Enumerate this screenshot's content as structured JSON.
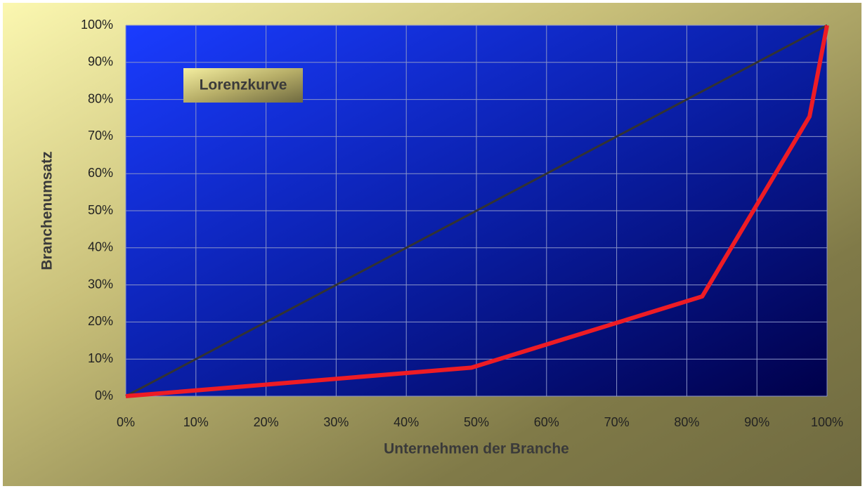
{
  "chart_data": {
    "type": "line",
    "x_label": "Unternehmen der Branche",
    "y_label": "Branchenumsatz",
    "annotation": "Lorenzkurve",
    "series": [
      {
        "color": "#333333",
        "x": [
          0,
          100
        ],
        "values": [
          0,
          100
        ]
      },
      {
        "color": "#ee1c25",
        "x": [
          0,
          49.3,
          82.2,
          97.5,
          100
        ],
        "values": [
          0,
          7.7,
          26.9,
          75.4,
          100
        ]
      }
    ],
    "xlim": [
      0,
      100
    ],
    "xticks": [
      {
        "value": 0,
        "label": "0%"
      },
      {
        "value": 10,
        "label": "10%"
      },
      {
        "value": 20,
        "label": "20%"
      },
      {
        "value": 30,
        "label": "30%"
      },
      {
        "value": 40,
        "label": "40%"
      },
      {
        "value": 50,
        "label": "50%"
      },
      {
        "value": 60,
        "label": "60%"
      },
      {
        "value": 70,
        "label": "70%"
      },
      {
        "value": 80,
        "label": "80%"
      },
      {
        "value": 90,
        "label": "90%"
      },
      {
        "value": 100,
        "label": "100%"
      }
    ],
    "ylim": [
      0,
      100
    ],
    "yticks": [
      {
        "value": 0,
        "label": "0%"
      },
      {
        "value": 10,
        "label": "10%"
      },
      {
        "value": 20,
        "label": "20%"
      },
      {
        "value": 30,
        "label": "30%"
      },
      {
        "value": 40,
        "label": "40%"
      },
      {
        "value": 50,
        "label": "50%"
      },
      {
        "value": 60,
        "label": "60%"
      },
      {
        "value": 70,
        "label": "70%"
      },
      {
        "value": 80,
        "label": "80%"
      },
      {
        "value": 90,
        "label": "90%"
      },
      {
        "value": 100,
        "label": "100%"
      }
    ],
    "grid": true
  }
}
